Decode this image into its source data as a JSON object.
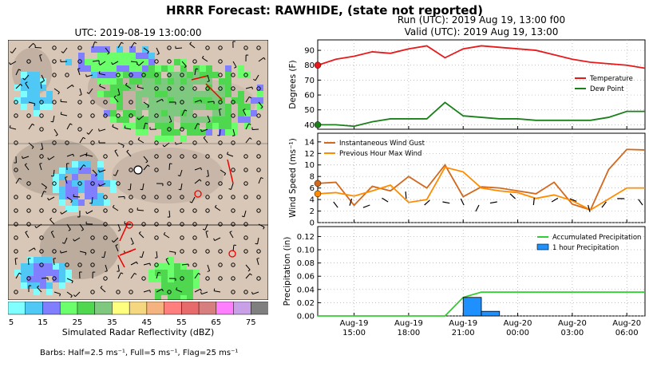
{
  "title": "HRRR Forecast: RAWHIDE, (state not reported)",
  "map": {
    "title": "UTC: 2019-08-19 13:00:00",
    "colorbar_label": "Simulated Radar Reflectivity (dBZ)",
    "colorbar_ticks": [
      "5",
      "15",
      "25",
      "35",
      "45",
      "55",
      "65",
      "75"
    ],
    "colorbar_colors": [
      "#7fffff",
      "#4fc8f5",
      "#7f7fff",
      "#6cff6c",
      "#4fd74f",
      "#7fc87f",
      "#ffff7f",
      "#f5d77f",
      "#f5b47f",
      "#ff7f7f",
      "#e86b6b",
      "#d77f7f",
      "#ff7fff",
      "#c8a0e8",
      "#7f7f7f"
    ],
    "barb_note": "Barbs: Half=2.5 ms⁻¹, Full=5 ms⁻¹, Flag=25 ms⁻¹"
  },
  "run_line": "Run (UTC): 2019 Aug 19, 13:00 f00",
  "valid_line": "Valid (UTC): 2019 Aug 19, 13:00",
  "x_tick_labels": [
    {
      "line1": "Aug-19",
      "line2": "15:00"
    },
    {
      "line1": "Aug-19",
      "line2": "18:00"
    },
    {
      "line1": "Aug-19",
      "line2": "21:00"
    },
    {
      "line1": "Aug-20",
      "line2": "00:00"
    },
    {
      "line1": "Aug-20",
      "line2": "03:00"
    },
    {
      "line1": "Aug-20",
      "line2": "06:00"
    }
  ],
  "chart_data": [
    {
      "type": "line",
      "ylabel": "Degrees (F)",
      "x": [
        "2019-08-19 13:00",
        "2019-08-19 14:00",
        "2019-08-19 15:00",
        "2019-08-19 16:00",
        "2019-08-19 17:00",
        "2019-08-19 18:00",
        "2019-08-19 19:00",
        "2019-08-19 20:00",
        "2019-08-19 21:00",
        "2019-08-19 22:00",
        "2019-08-19 23:00",
        "2019-08-20 00:00",
        "2019-08-20 01:00",
        "2019-08-20 02:00",
        "2019-08-20 03:00",
        "2019-08-20 04:00",
        "2019-08-20 05:00",
        "2019-08-20 06:00",
        "2019-08-20 07:00"
      ],
      "ylim": [
        37,
        97
      ],
      "yticks": [
        40,
        50,
        60,
        70,
        80,
        90
      ],
      "legend_position": "right",
      "series": [
        {
          "name": "Temperature",
          "color": "#e8191a",
          "values": [
            80,
            84,
            86,
            89,
            88,
            91,
            93,
            85,
            91,
            93,
            92,
            91,
            90,
            87,
            84,
            82,
            81,
            80,
            78
          ]
        },
        {
          "name": "Dew Point",
          "color": "#1a801a",
          "values": [
            40,
            40,
            39,
            42,
            44,
            44,
            44,
            55,
            46,
            45,
            44,
            44,
            43,
            43,
            43,
            43,
            45,
            49,
            49
          ]
        }
      ]
    },
    {
      "type": "line",
      "ylabel": "Wind Speed (ms⁻¹)",
      "ylim": [
        0,
        15.5
      ],
      "yticks": [
        0,
        2,
        4,
        6,
        8,
        10,
        12,
        14
      ],
      "legend_position": "top-left",
      "series": [
        {
          "name": "Instantaneous Wind Gust",
          "color": "#d2691e",
          "values": [
            6.8,
            7.0,
            3.0,
            6.3,
            5.5,
            8.0,
            6.0,
            10.0,
            4.5,
            6.2,
            6.0,
            5.5,
            5.0,
            7.0,
            3.2,
            2.2,
            9.2,
            12.7,
            12.6
          ]
        },
        {
          "name": "Previous Hour Max Wind",
          "color": "#ff8c00",
          "values": [
            5.0,
            5.2,
            4.6,
            5.5,
            6.5,
            3.5,
            4.0,
            9.6,
            8.8,
            6.0,
            5.5,
            5.2,
            4.2,
            4.8,
            3.8,
            2.2,
            4.1,
            6.0,
            6.0
          ]
        }
      ]
    },
    {
      "type": "line",
      "ylabel": "Precipitation (in)",
      "ylim": [
        0,
        0.135
      ],
      "yticks": [
        "0.00",
        "0.02",
        "0.04",
        "0.06",
        "0.08",
        "0.10",
        "0.12"
      ],
      "legend_position": "top-right",
      "series": [
        {
          "name": "Accumulated Precipitation",
          "color": "#32cd32",
          "values": [
            0,
            0,
            0,
            0,
            0,
            0,
            0,
            0,
            0.028,
            0.036,
            0.036,
            0.036,
            0.036,
            0.036,
            0.036,
            0.036,
            0.036,
            0.036,
            0.036
          ]
        },
        {
          "name": "1 hour Precipitation",
          "type": "bar",
          "color": "#1e90ff",
          "values": [
            0,
            0,
            0,
            0,
            0,
            0,
            0,
            0,
            0.028,
            0.007,
            0,
            0,
            0,
            0,
            0,
            0,
            0,
            0,
            0
          ]
        }
      ]
    }
  ]
}
